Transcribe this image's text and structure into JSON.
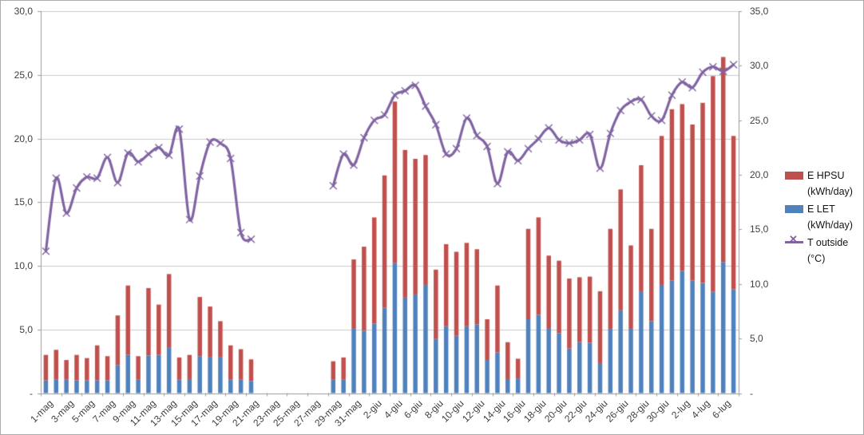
{
  "chart_data": {
    "type": "combo-stacked-bar-line",
    "categories": [
      "1-mag",
      "2-mag",
      "3-mag",
      "4-mag",
      "5-mag",
      "6-mag",
      "7-mag",
      "8-mag",
      "9-mag",
      "10-mag",
      "11-mag",
      "12-mag",
      "13-mag",
      "14-mag",
      "15-mag",
      "16-mag",
      "17-mag",
      "18-mag",
      "19-mag",
      "20-mag",
      "21-mag",
      "22-mag",
      "23-mag",
      "24-mag",
      "25-mag",
      "26-mag",
      "27-mag",
      "28-mag",
      "29-mag",
      "30-mag",
      "31-mag",
      "1-giu",
      "2-giu",
      "3-giu",
      "4-giu",
      "5-giu",
      "6-giu",
      "7-giu",
      "8-giu",
      "9-giu",
      "10-giu",
      "11-giu",
      "12-giu",
      "13-giu",
      "14-giu",
      "15-giu",
      "16-giu",
      "17-giu",
      "18-giu",
      "19-giu",
      "20-giu",
      "21-giu",
      "22-giu",
      "23-giu",
      "24-giu",
      "25-giu",
      "26-giu",
      "27-giu",
      "28-giu",
      "29-giu",
      "30-giu",
      "1-lug",
      "2-lug",
      "3-lug",
      "4-lug",
      "5-lug",
      "6-lug",
      "7-lug"
    ],
    "x_tick_labels": [
      "1-mag",
      "3-mag",
      "5-mag",
      "7-mag",
      "9-mag",
      "11-mag",
      "13-mag",
      "15-mag",
      "17-mag",
      "19-mag",
      "21-mag",
      "23-mag",
      "25-mag",
      "27-mag",
      "29-mag",
      "31-mag",
      "2-giu",
      "4-giu",
      "6-giu",
      "8-giu",
      "10-giu",
      "12-giu",
      "14-giu",
      "16-giu",
      "18-giu",
      "20-giu",
      "22-giu",
      "24-giu",
      "26-giu",
      "28-giu",
      "30-giu",
      "2-lug",
      "4-lug",
      "6-lug"
    ],
    "series": [
      {
        "name": "E HPSU (kWh/day)",
        "type": "bar",
        "stack": "energy",
        "color": "#C0504D",
        "axis": "left",
        "values": [
          2.0,
          2.35,
          1.55,
          2.0,
          1.75,
          2.75,
          1.9,
          3.9,
          5.45,
          1.85,
          5.3,
          3.95,
          5.75,
          1.75,
          1.9,
          4.65,
          4.0,
          2.85,
          2.7,
          2.4,
          1.7,
          null,
          null,
          null,
          null,
          null,
          null,
          null,
          1.45,
          1.75,
          5.45,
          6.6,
          8.35,
          10.4,
          12.7,
          11.6,
          10.65,
          10.2,
          5.45,
          6.45,
          6.6,
          6.55,
          5.9,
          3.2,
          5.25,
          2.9,
          1.55,
          7.1,
          7.65,
          5.75,
          5.7,
          5.5,
          5.1,
          5.2,
          5.65,
          7.85,
          9.5,
          6.55,
          9.9,
          7.25,
          11.7,
          13.45,
          13.1,
          12.25,
          14.15,
          16.95,
          16.1,
          12.05
        ]
      },
      {
        "name": "E LET (kWh/day)",
        "type": "bar",
        "stack": "energy",
        "color": "#4F81BD",
        "axis": "left",
        "values": [
          1.0,
          1.05,
          1.05,
          1.0,
          1.0,
          1.0,
          1.0,
          2.2,
          3.0,
          1.05,
          2.95,
          3.0,
          3.6,
          1.05,
          1.1,
          2.9,
          2.8,
          2.8,
          1.05,
          1.05,
          0.95,
          null,
          null,
          null,
          null,
          null,
          null,
          null,
          1.05,
          1.05,
          5.05,
          4.9,
          5.45,
          6.7,
          10.2,
          7.5,
          7.75,
          8.5,
          4.25,
          5.25,
          4.5,
          5.25,
          5.4,
          2.6,
          3.2,
          1.1,
          1.15,
          5.8,
          6.15,
          5.05,
          4.7,
          3.5,
          4.0,
          3.95,
          2.35,
          5.05,
          6.5,
          5.05,
          8.0,
          5.65,
          8.5,
          8.85,
          9.6,
          8.85,
          8.65,
          7.95,
          10.3,
          8.15
        ]
      },
      {
        "name": "T outside (°C)",
        "type": "line",
        "marker": "x",
        "color": "#8064A2",
        "axis": "right",
        "values": [
          13.0,
          19.7,
          16.5,
          18.8,
          19.8,
          19.7,
          21.6,
          19.3,
          22.0,
          21.2,
          21.9,
          22.5,
          21.8,
          24.2,
          15.9,
          19.9,
          23.0,
          22.9,
          21.5,
          14.7,
          14.1,
          null,
          null,
          null,
          null,
          null,
          null,
          null,
          19.0,
          21.9,
          20.9,
          23.4,
          25.0,
          25.5,
          27.3,
          27.7,
          28.2,
          26.3,
          24.6,
          21.9,
          22.4,
          25.2,
          23.6,
          22.6,
          19.2,
          22.1,
          21.3,
          22.4,
          23.3,
          24.3,
          23.2,
          22.9,
          23.2,
          23.7,
          20.6,
          23.8,
          25.9,
          26.7,
          26.9,
          25.4,
          25.0,
          27.3,
          28.5,
          28.0,
          29.4,
          29.9,
          29.5,
          30.1
        ]
      }
    ],
    "left_axis": {
      "min": 0,
      "max": 30,
      "step": 5,
      "tick_labels": [
        "30,0",
        "25,0",
        "20,0",
        "15,0",
        "10,0",
        "5,0",
        "-"
      ],
      "tick_values": [
        30,
        25,
        20,
        15,
        10,
        5,
        0
      ]
    },
    "right_axis": {
      "min": 0,
      "max": 35,
      "step": 5,
      "tick_labels": [
        "35,0",
        "30,0",
        "25,0",
        "20,0",
        "15,0",
        "10,0",
        "5,0",
        "-"
      ],
      "tick_values": [
        35,
        30,
        25,
        20,
        15,
        10,
        5,
        0
      ]
    },
    "grid": true,
    "legend_position": "right"
  },
  "legend": {
    "items": [
      {
        "label": "E HPSU (kWh/day)",
        "color": "#C0504D",
        "marker": "square"
      },
      {
        "label": "E LET (kWh/day)",
        "color": "#4F81BD",
        "marker": "square"
      },
      {
        "label": "T outside (°C)",
        "color": "#8064A2",
        "marker": "line-x"
      }
    ]
  },
  "style": {
    "gridline_color": "#cbcbcb",
    "axis_line_color": "#9b9b9b",
    "tick_color": "#9b9b9b",
    "label_color": "#404040",
    "marker_glyph": "✕"
  }
}
